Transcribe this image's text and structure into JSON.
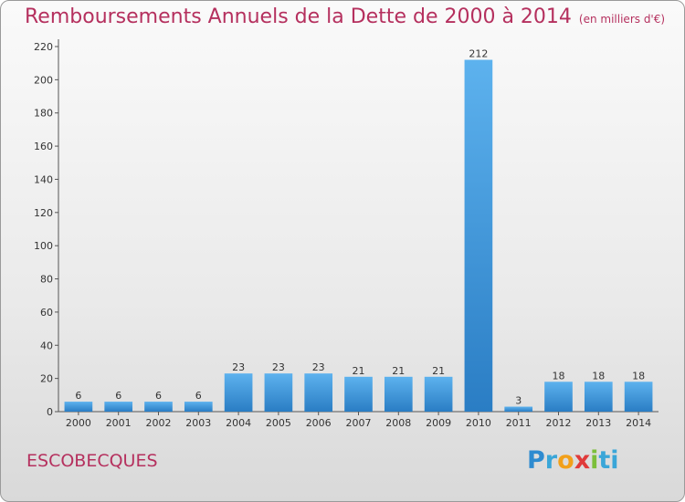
{
  "header": {
    "title": "Remboursements Annuels de la Dette de 2000 à 2014",
    "unit": "(en milliers d'€)"
  },
  "commune": "ESCOBECQUES",
  "logo": {
    "text": "Proxiti",
    "letters": [
      "P",
      "r",
      "o",
      "x",
      "i",
      "ti"
    ]
  },
  "chart_data": {
    "type": "bar",
    "title": "Remboursements Annuels de la Dette de 2000 à 2014",
    "subtitle": "(en milliers d'€)",
    "categories": [
      "2000",
      "2001",
      "2002",
      "2003",
      "2004",
      "2005",
      "2006",
      "2007",
      "2008",
      "2009",
      "2010",
      "2011",
      "2012",
      "2013",
      "2014"
    ],
    "values": [
      6,
      6,
      6,
      6,
      23,
      23,
      23,
      21,
      21,
      21,
      212,
      3,
      18,
      18,
      18
    ],
    "ylim": [
      0,
      220
    ],
    "yticks": [
      0,
      20,
      40,
      60,
      80,
      100,
      120,
      140,
      160,
      180,
      200,
      220
    ],
    "grid": false,
    "bar_color": "#3d96dc",
    "bar_color_light": "#5db2ee",
    "bar_color_dark": "#2a7dc4"
  }
}
